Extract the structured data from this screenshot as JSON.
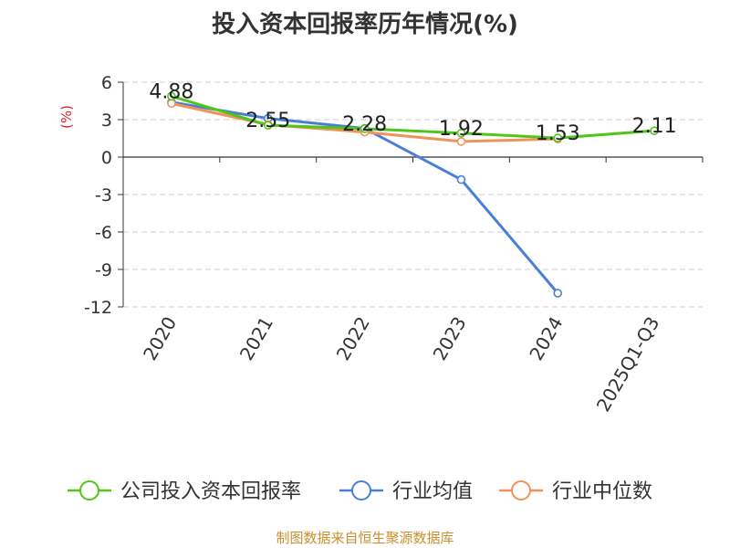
{
  "chart_data": {
    "type": "line",
    "title": "投入资本回报率历年情况(%)",
    "ylabel": "(%)",
    "xlabel": "",
    "categories": [
      "2020",
      "2021",
      "2022",
      "2023",
      "2024",
      "2025Q1-Q3"
    ],
    "ylim": [
      -12,
      6
    ],
    "yticks": [
      "6",
      "3",
      "0",
      "-3",
      "-6",
      "-9",
      "-12"
    ],
    "grid": true,
    "legend_position": "bottom",
    "series": [
      {
        "name": "公司投入资本回报率",
        "color": "#52c41a",
        "values": [
          4.88,
          2.55,
          2.28,
          1.92,
          1.53,
          2.11
        ],
        "labels": [
          "4.88",
          "2.55",
          "2.28",
          "1.92",
          "1.53",
          "2.11"
        ]
      },
      {
        "name": "行业均值",
        "color": "#4a7fd8",
        "values": [
          4.4,
          3.1,
          2.3,
          -1.8,
          -10.9,
          null
        ],
        "labels": []
      },
      {
        "name": "行业中位数",
        "color": "#f0925a",
        "values": [
          4.3,
          2.6,
          2.0,
          1.25,
          1.45,
          null
        ],
        "labels": []
      }
    ]
  },
  "source_note": "制图数据来自恒生聚源数据库"
}
